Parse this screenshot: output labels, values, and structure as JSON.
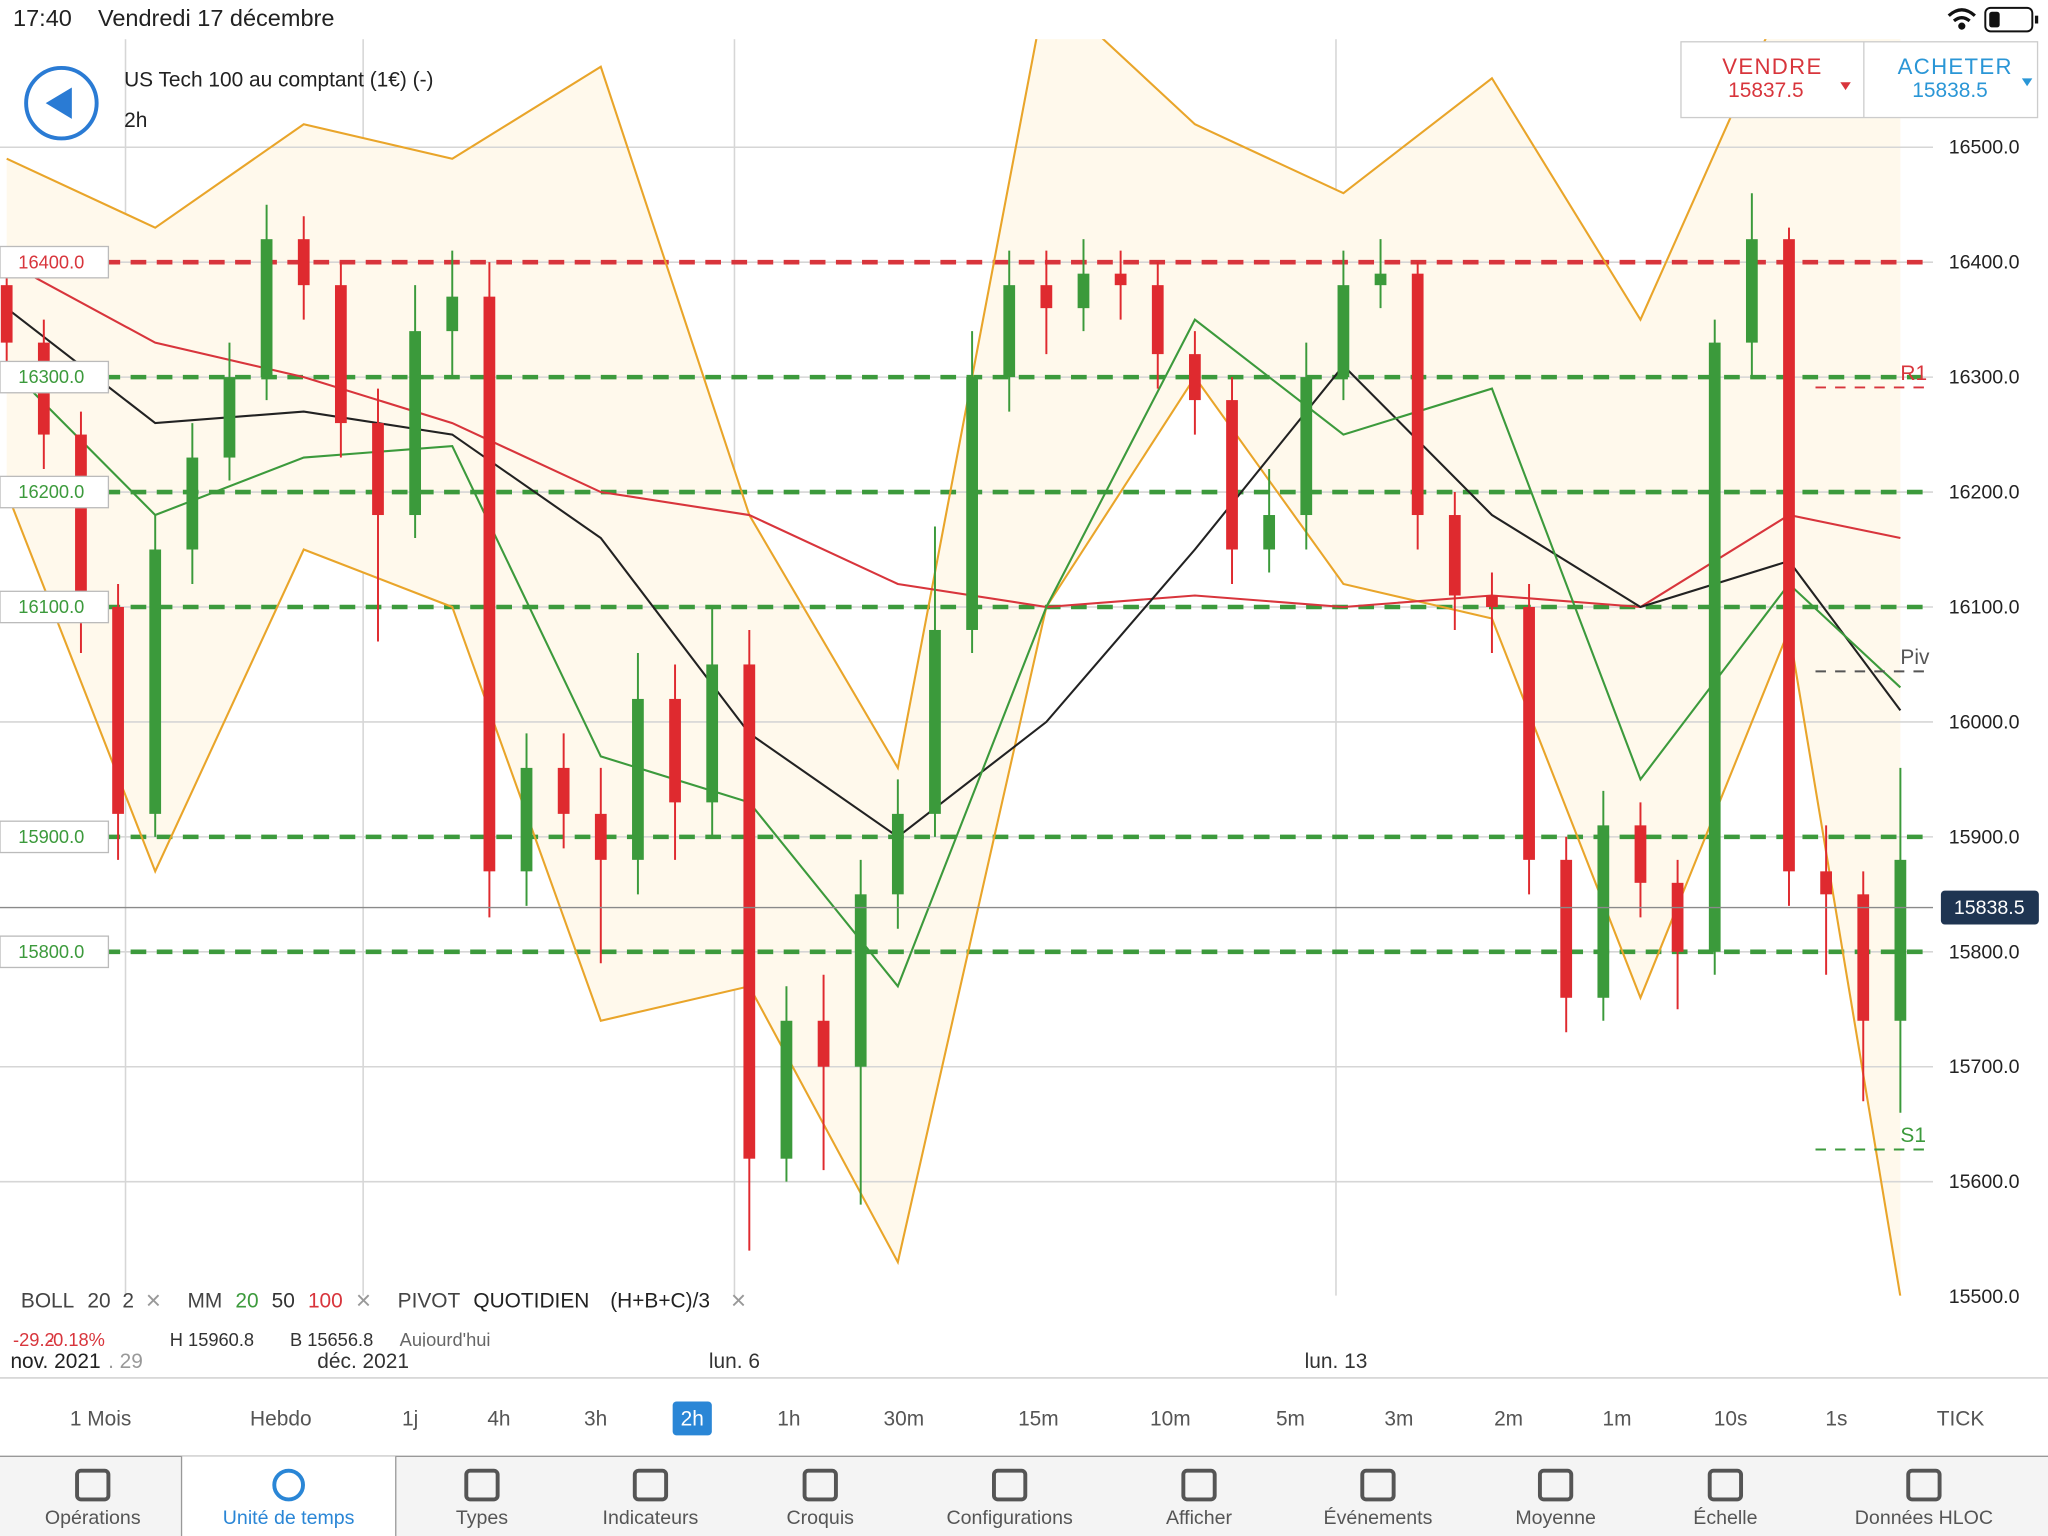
{
  "status": {
    "time": "17:40",
    "date": "Vendredi 17 décembre"
  },
  "instrument": {
    "name": "US Tech 100 au comptant (1€) (-)",
    "timeframe": "2h"
  },
  "quote": {
    "sell": {
      "label": "VENDRE",
      "price": 15837.5
    },
    "buy": {
      "label": "ACHETER",
      "price": 15838.5
    }
  },
  "chart_data": {
    "type": "candlestick",
    "ylim": [
      15469,
      16594
    ],
    "xlim": [
      -0.18,
      51.88
    ],
    "yticks": [
      {
        "value": 15500,
        "label": "15500.0"
      },
      {
        "value": 15600,
        "label": "15600.0"
      },
      {
        "value": 15700,
        "label": "15700.0"
      },
      {
        "value": 15800,
        "label": "15800.0"
      },
      {
        "value": 15900,
        "label": "15900.0"
      },
      {
        "value": 16000,
        "label": "16000.0"
      },
      {
        "value": 16100,
        "label": "16100.0"
      },
      {
        "value": 16200,
        "label": "16200.0"
      },
      {
        "value": 16300,
        "label": "16300.0"
      },
      {
        "value": 16400,
        "label": "16400.0"
      },
      {
        "value": 16500,
        "label": "16500.0"
      }
    ],
    "xticks": [
      {
        "value": 3.2,
        "label": ". 29"
      },
      {
        "value": 9.6,
        "label": "déc. 2021"
      },
      {
        "value": 19.6,
        "label": "lun. 6"
      },
      {
        "value": 35.8,
        "label": "lun. 13"
      }
    ],
    "x_start_label": "nov. 2021",
    "up_color": "#3b9a3b",
    "down_color": "#df2a2f",
    "candles": [
      [
        16380,
        16400,
        16300,
        16330
      ],
      [
        16330,
        16350,
        16220,
        16250
      ],
      [
        16250,
        16270,
        16060,
        16100
      ],
      [
        16100,
        16120,
        15880,
        15920
      ],
      [
        15920,
        16180,
        15900,
        16150
      ],
      [
        16150,
        16260,
        16120,
        16230
      ],
      [
        16230,
        16330,
        16210,
        16300
      ],
      [
        16300,
        16450,
        16280,
        16420
      ],
      [
        16420,
        16440,
        16350,
        16380
      ],
      [
        16380,
        16400,
        16230,
        16260
      ],
      [
        16260,
        16290,
        16070,
        16180
      ],
      [
        16180,
        16380,
        16160,
        16340
      ],
      [
        16340,
        16410,
        16300,
        16370
      ],
      [
        16370,
        16400,
        15830,
        15870
      ],
      [
        15870,
        15990,
        15840,
        15960
      ],
      [
        15960,
        15990,
        15890,
        15920
      ],
      [
        15920,
        15960,
        15790,
        15880
      ],
      [
        15880,
        16060,
        15850,
        16020
      ],
      [
        16020,
        16050,
        15880,
        15930
      ],
      [
        15930,
        16100,
        15900,
        16050
      ],
      [
        16050,
        16080,
        15540,
        15620
      ],
      [
        15620,
        15770,
        15600,
        15740
      ],
      [
        15740,
        15780,
        15610,
        15700
      ],
      [
        15700,
        15880,
        15580,
        15850
      ],
      [
        15850,
        15950,
        15820,
        15920
      ],
      [
        15920,
        16170,
        15900,
        16080
      ],
      [
        16080,
        16340,
        16060,
        16300
      ],
      [
        16300,
        16410,
        16270,
        16380
      ],
      [
        16380,
        16410,
        16320,
        16360
      ],
      [
        16360,
        16420,
        16340,
        16390
      ],
      [
        16390,
        16410,
        16350,
        16380
      ],
      [
        16380,
        16400,
        16290,
        16320
      ],
      [
        16320,
        16340,
        16250,
        16280
      ],
      [
        16280,
        16300,
        16120,
        16150
      ],
      [
        16150,
        16220,
        16130,
        16180
      ],
      [
        16180,
        16330,
        16150,
        16300
      ],
      [
        16300,
        16410,
        16280,
        16380
      ],
      [
        16380,
        16420,
        16360,
        16390
      ],
      [
        16390,
        16400,
        16150,
        16180
      ],
      [
        16180,
        16200,
        16080,
        16110
      ],
      [
        16110,
        16130,
        16060,
        16100
      ],
      [
        16100,
        16120,
        15850,
        15880
      ],
      [
        15880,
        15900,
        15730,
        15760
      ],
      [
        15760,
        15940,
        15740,
        15910
      ],
      [
        15910,
        15930,
        15830,
        15860
      ],
      [
        15860,
        15880,
        15750,
        15800
      ],
      [
        15800,
        16350,
        15780,
        16330
      ],
      [
        16330,
        16460,
        16300,
        16420
      ],
      [
        16420,
        16430,
        15840,
        15870
      ],
      [
        15870,
        15910,
        15780,
        15850
      ],
      [
        15850,
        15870,
        15670,
        15740
      ],
      [
        15740,
        15960,
        15660,
        15880
      ]
    ],
    "levels": [
      {
        "value": 16400,
        "label": "16400.0",
        "color": "#d8353c"
      },
      {
        "value": 16300,
        "label": "16300.0",
        "color": "#3c9a3c"
      },
      {
        "value": 16200,
        "label": "16200.0",
        "color": "#3c9a3c"
      },
      {
        "value": 16100,
        "label": "16100.0",
        "color": "#3c9a3c"
      },
      {
        "value": 15900,
        "label": "15900.0",
        "color": "#3c9a3c"
      },
      {
        "value": 15800,
        "label": "15800.0",
        "color": "#3c9a3c"
      }
    ],
    "current": {
      "value": 15838.5,
      "label": "15838.5"
    },
    "pivots": [
      {
        "name": "R1",
        "value": 16291,
        "color": "#d8353c"
      },
      {
        "name": "Piv",
        "value": 16044,
        "color": "#555555"
      },
      {
        "name": "S1",
        "value": 15628,
        "color": "#3c9a3c"
      }
    ],
    "band_fill": "#fff9ec",
    "lines": {
      "x": [
        0,
        4,
        8,
        12,
        16,
        20,
        24,
        28,
        32,
        36,
        40,
        44,
        48,
        51
      ],
      "series": [
        {
          "color": "#e9a52a",
          "values": [
            16490,
            16430,
            16520,
            16490,
            16570,
            16180,
            15960,
            16640,
            16520,
            16460,
            16560,
            16350,
            16640,
            16630
          ]
        },
        {
          "color": "#e9a52a",
          "values": [
            16200,
            15870,
            16150,
            16100,
            15740,
            15770,
            15530,
            16100,
            16300,
            16120,
            16090,
            15760,
            16080,
            15500
          ]
        },
        {
          "color": "#d8353c",
          "values": [
            16400,
            16330,
            16300,
            16260,
            16200,
            16180,
            16120,
            16100,
            16110,
            16100,
            16110,
            16100,
            16180,
            16160
          ]
        },
        {
          "color": "#222222",
          "values": [
            16360,
            16260,
            16270,
            16250,
            16160,
            15990,
            15900,
            16000,
            16150,
            16310,
            16180,
            16100,
            16140,
            16010
          ]
        },
        {
          "color": "#3c9a3c",
          "values": [
            16310,
            16180,
            16230,
            16240,
            15970,
            15930,
            15770,
            16100,
            16350,
            16250,
            16290,
            15950,
            16120,
            16030
          ]
        }
      ]
    }
  },
  "legend": {
    "boll": {
      "label": "BOLL",
      "params": [
        20,
        2
      ]
    },
    "mm": {
      "label": "MM",
      "params": [
        {
          "value": 20,
          "color": "#3c9a3c"
        },
        {
          "value": 50,
          "color": "#333333"
        },
        {
          "value": 100,
          "color": "#d8353c"
        }
      ]
    },
    "pivot": {
      "label": "PIVOT",
      "params": [
        "QUOTIDIEN",
        "(H+B+C)/3"
      ]
    },
    "close": "×"
  },
  "stats": {
    "change": -29.2,
    "change_pct": "-0.18%",
    "high": "H 15960.8",
    "low": "B 15656.8",
    "period": "Aujourd'hui"
  },
  "timeframes": {
    "selected": 5,
    "items": [
      "1 Mois",
      "Hebdo",
      "1j",
      "4h",
      "3h",
      "2h",
      "1h",
      "30m",
      "15m",
      "10m",
      "5m",
      "3m",
      "2m",
      "1m",
      "10s",
      "1s",
      "TICK"
    ]
  },
  "toolbar": {
    "selected": 1,
    "items": [
      "Opérations",
      "Unité de temps",
      "Types",
      "Indicateurs",
      "Croquis",
      "Configurations",
      "Afficher",
      "Événements",
      "Moyenne",
      "Échelle",
      "Données HLOC"
    ]
  }
}
